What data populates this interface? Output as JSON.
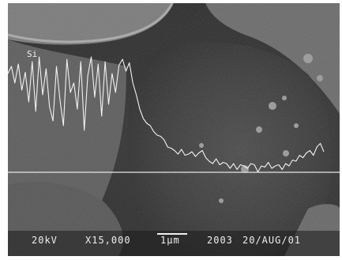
{
  "image": {
    "element_label": "Si",
    "scale_bar_label": "1μm",
    "info_bar": {
      "accelerating_voltage": "20kV",
      "magnification": "X15,000",
      "code": "2003",
      "date": "20/AUG/01"
    }
  },
  "line_scan": {
    "element": "Si",
    "relative_intensity": [
      0.78,
      0.84,
      0.7,
      0.86,
      0.64,
      0.79,
      0.54,
      0.88,
      0.46,
      0.92,
      0.6,
      0.82,
      0.5,
      0.38,
      0.84,
      0.56,
      0.34,
      0.9,
      0.62,
      0.7,
      0.48,
      0.88,
      0.3,
      0.76,
      0.92,
      0.58,
      0.86,
      0.42,
      0.88,
      0.52,
      0.78,
      0.62,
      0.85,
      0.9,
      0.8,
      0.87,
      0.7,
      0.6,
      0.48,
      0.4,
      0.36,
      0.34,
      0.29,
      0.26,
      0.25,
      0.22,
      0.16,
      0.15,
      0.13,
      0.1,
      0.14,
      0.09,
      0.1,
      0.12,
      0.08,
      0.11,
      0.13,
      0.07,
      0.04,
      0.02,
      0.06,
      0.01,
      0.03,
      0.02,
      -0.02,
      0.02,
      -0.03,
      0.01,
      0.0,
      -0.02,
      0.02,
      0.01,
      -0.05,
      0.0,
      -0.01,
      0.03,
      -0.02,
      0.0,
      0.01,
      -0.03,
      0.02,
      0.0,
      0.05,
      0.04,
      0.09,
      0.07,
      0.11,
      0.13,
      0.09,
      0.16,
      0.19,
      0.12
    ]
  }
}
